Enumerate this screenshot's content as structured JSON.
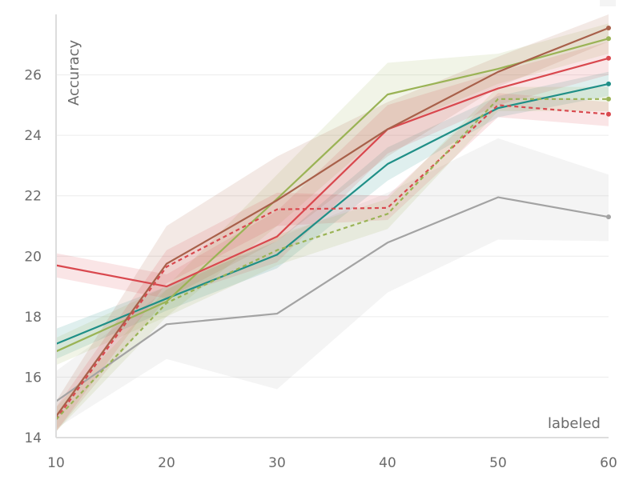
{
  "chart_data": {
    "type": "line",
    "title": "",
    "xlabel": "labeled",
    "ylabel": "Accuracy",
    "xlim": [
      10,
      60
    ],
    "ylim": [
      14,
      28
    ],
    "x": [
      10,
      20,
      30,
      40,
      50,
      60
    ],
    "xticks": [
      "10",
      "20",
      "30",
      "40",
      "50",
      "60"
    ],
    "yticks": [
      "14",
      "16",
      "18",
      "20",
      "22",
      "24",
      "26"
    ],
    "ytick_values": [
      14,
      16,
      18,
      20,
      22,
      24,
      26
    ],
    "grid": true,
    "series": [
      {
        "name": "gray",
        "color": "#a3a3a3",
        "dash": false,
        "values": [
          15.2,
          17.75,
          18.1,
          20.45,
          21.95,
          21.3
        ],
        "lower": [
          14.3,
          16.6,
          15.6,
          18.8,
          20.55,
          20.5
        ],
        "upper": [
          16.2,
          18.9,
          20.6,
          22.1,
          23.9,
          22.7
        ]
      },
      {
        "name": "teal",
        "color": "#1f8f87",
        "dash": false,
        "values": [
          17.1,
          18.6,
          20.05,
          23.05,
          24.9,
          25.7
        ],
        "lower": [
          16.6,
          18.2,
          19.6,
          22.5,
          24.6,
          25.3
        ],
        "upper": [
          17.6,
          19.0,
          20.5,
          23.6,
          25.3,
          26.1
        ]
      },
      {
        "name": "green",
        "color": "#9ab355",
        "dash": false,
        "values": [
          16.85,
          18.5,
          21.9,
          25.35,
          26.2,
          27.2
        ],
        "lower": [
          16.4,
          18.0,
          21.0,
          24.2,
          25.7,
          26.7
        ],
        "upper": [
          17.3,
          19.0,
          22.7,
          26.4,
          26.7,
          27.7
        ]
      },
      {
        "name": "red",
        "color": "#d9484e",
        "dash": false,
        "values": [
          19.7,
          19.0,
          20.65,
          24.2,
          25.55,
          26.55
        ],
        "lower": [
          19.3,
          18.6,
          19.8,
          23.4,
          25.0,
          26.0
        ],
        "upper": [
          20.1,
          19.4,
          21.5,
          25.0,
          26.1,
          27.1
        ]
      },
      {
        "name": "brown",
        "color": "#a8604a",
        "dash": false,
        "values": [
          14.7,
          19.75,
          21.85,
          24.2,
          26.1,
          27.55
        ],
        "lower": [
          14.2,
          18.6,
          20.5,
          23.3,
          25.6,
          27.1
        ],
        "upper": [
          15.2,
          21.0,
          23.3,
          25.1,
          26.6,
          28.0
        ]
      },
      {
        "name": "red dashed",
        "color": "#d9484e",
        "dash": true,
        "values": [
          14.6,
          19.65,
          21.55,
          21.6,
          25.0,
          24.7
        ],
        "lower": [
          14.2,
          19.1,
          21.0,
          21.2,
          24.6,
          24.3
        ],
        "upper": [
          15.0,
          20.2,
          22.1,
          22.0,
          25.4,
          25.1
        ]
      },
      {
        "name": "green dashed",
        "color": "#9ab355",
        "dash": true,
        "values": [
          14.6,
          18.45,
          20.2,
          21.4,
          25.2,
          25.2
        ],
        "lower": [
          14.2,
          18.0,
          19.7,
          20.9,
          24.8,
          24.8
        ],
        "upper": [
          15.0,
          18.9,
          20.7,
          21.9,
          25.6,
          25.6
        ]
      }
    ]
  }
}
